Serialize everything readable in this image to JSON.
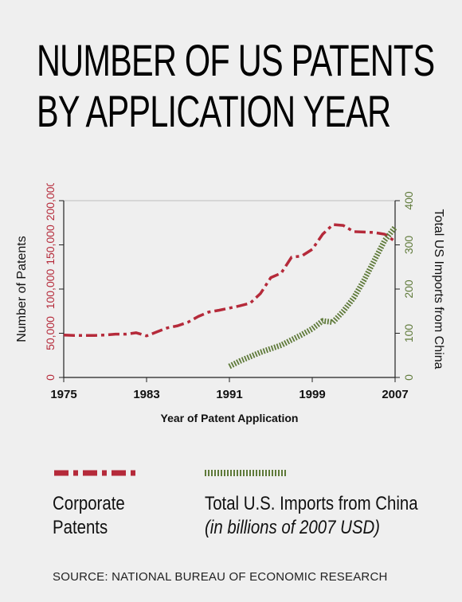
{
  "title_lines": [
    "NUMBER OF US PATENTS",
    "BY APPLICATION YEAR"
  ],
  "source": "SOURCE: NATIONAL BUREAU OF ECONOMIC RESEARCH",
  "legend": {
    "patents_label": [
      "Corporate",
      "Patents"
    ],
    "imports_label": [
      "Total U.S. Imports from China",
      "(in billions of 2007 USD)"
    ]
  },
  "colors": {
    "patents": "#b52a3a",
    "imports": "#5f7a3a",
    "axis": "#222222"
  },
  "chart_data": {
    "type": "line",
    "xlabel": "Year of Patent Application",
    "ylabel_left": "Number of Patents",
    "ylabel_right": "Total US Imports from China",
    "xlim": [
      1975,
      2007
    ],
    "ylim_left": [
      0,
      200000
    ],
    "ylim_right": [
      0,
      400
    ],
    "x_ticks": [
      1975,
      1983,
      1991,
      1999,
      2007
    ],
    "y_left_ticks": [
      0,
      50000,
      100000,
      150000,
      200000
    ],
    "y_left_tick_labels": [
      "0",
      "50,000",
      "100,000",
      "150,000",
      "200,000"
    ],
    "y_right_ticks": [
      0,
      100,
      200,
      300,
      400
    ],
    "y_right_tick_labels": [
      "0",
      "100",
      "200",
      "300",
      "400"
    ],
    "series": [
      {
        "name": "Corporate Patents",
        "axis": "left",
        "style": "dash-dot",
        "x": [
          1975,
          1976,
          1977,
          1978,
          1979,
          1980,
          1981,
          1982,
          1983,
          1984,
          1985,
          1986,
          1987,
          1988,
          1989,
          1990,
          1991,
          1992,
          1993,
          1994,
          1995,
          1996,
          1997,
          1998,
          1999,
          2000,
          2001,
          2002,
          2003,
          2004,
          2005,
          2006,
          2007
        ],
        "y": [
          48000,
          47500,
          47500,
          47500,
          48000,
          49000,
          49000,
          50500,
          47000,
          51500,
          56000,
          58500,
          62500,
          69000,
          74000,
          76000,
          78500,
          81000,
          84000,
          95000,
          113000,
          118000,
          136000,
          137500,
          145000,
          162000,
          173000,
          172000,
          165000,
          164500,
          164000,
          162000,
          154000
        ]
      },
      {
        "name": "Total U.S. Imports from China",
        "axis": "right",
        "style": "hatched",
        "x": [
          1991,
          1992,
          1993,
          1994,
          1995,
          1996,
          1997,
          1998,
          1999,
          2000,
          2001,
          2002,
          2003,
          2004,
          2005,
          2006,
          2007
        ],
        "y": [
          25,
          37,
          47,
          57,
          65,
          73,
          85,
          97,
          110,
          128,
          125,
          150,
          180,
          220,
          265,
          310,
          340
        ]
      }
    ]
  }
}
